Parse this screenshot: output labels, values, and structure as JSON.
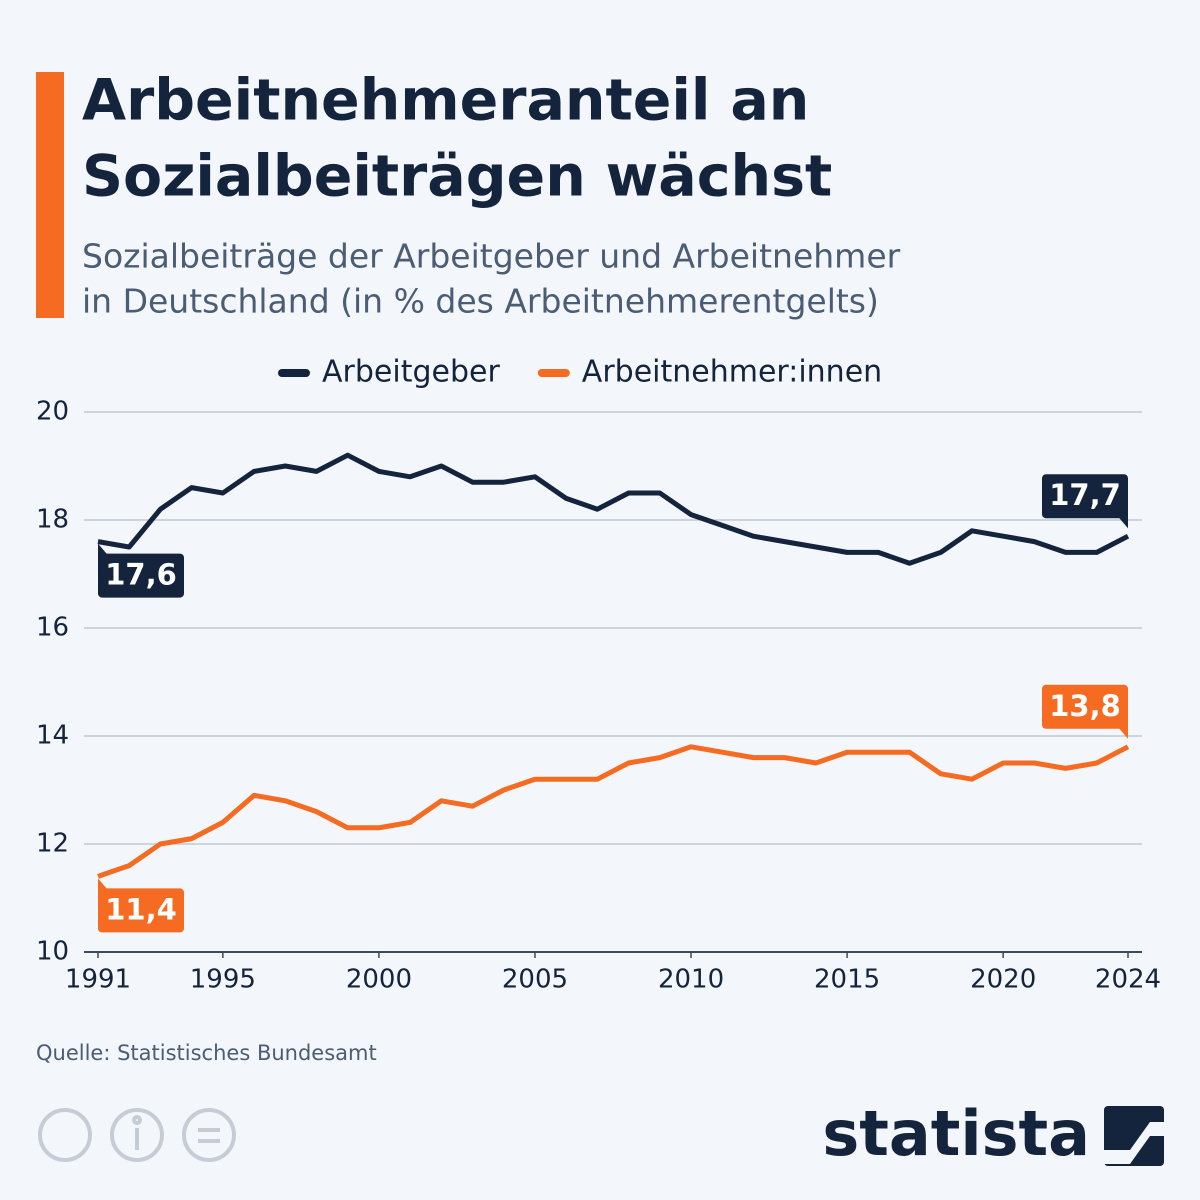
{
  "chart_data": {
    "type": "line",
    "title": [
      "Arbeitnehmeranteil an",
      "Sozialbeiträgen wächst"
    ],
    "subtitle": [
      "Sozialbeiträge der Arbeitgeber und Arbeitnehmer",
      "in Deutschland (in % des Arbeitnehmerentgelts)"
    ],
    "x": [
      1991,
      1992,
      1993,
      1994,
      1995,
      1996,
      1997,
      1998,
      1999,
      2000,
      2001,
      2002,
      2003,
      2004,
      2005,
      2006,
      2007,
      2008,
      2009,
      2010,
      2011,
      2012,
      2013,
      2014,
      2015,
      2016,
      2017,
      2018,
      2019,
      2020,
      2021,
      2022,
      2023,
      2024
    ],
    "series": [
      {
        "name": "Arbeitgeber",
        "color": "#14243d",
        "values": [
          17.6,
          17.5,
          18.2,
          18.6,
          18.5,
          18.9,
          19.0,
          18.9,
          19.2,
          18.9,
          18.8,
          19.0,
          18.7,
          18.7,
          18.8,
          18.4,
          18.2,
          18.5,
          18.5,
          18.1,
          17.9,
          17.7,
          17.6,
          17.5,
          17.4,
          17.4,
          17.2,
          17.4,
          17.8,
          17.7,
          17.6,
          17.4,
          17.4,
          17.7
        ],
        "value_labels": [
          "17,6",
          null,
          null,
          null,
          null,
          null,
          null,
          null,
          null,
          null,
          null,
          null,
          null,
          null,
          null,
          null,
          null,
          null,
          null,
          null,
          null,
          null,
          null,
          null,
          null,
          null,
          null,
          null,
          null,
          null,
          null,
          null,
          null,
          "17,7"
        ]
      },
      {
        "name": "Arbeitnehmer:innen",
        "color": "#f46b21",
        "values": [
          11.4,
          11.6,
          12.0,
          12.1,
          12.4,
          12.9,
          12.8,
          12.6,
          12.3,
          12.3,
          12.4,
          12.8,
          12.7,
          13.0,
          13.2,
          13.2,
          13.2,
          13.5,
          13.6,
          13.8,
          13.7,
          13.6,
          13.6,
          13.5,
          13.7,
          13.7,
          13.7,
          13.3,
          13.2,
          13.5,
          13.5,
          13.4,
          13.5,
          13.8
        ],
        "value_labels": [
          "11,4",
          null,
          null,
          null,
          null,
          null,
          null,
          null,
          null,
          null,
          null,
          null,
          null,
          null,
          null,
          null,
          null,
          null,
          null,
          null,
          null,
          null,
          null,
          null,
          null,
          null,
          null,
          null,
          null,
          null,
          null,
          null,
          null,
          "13,8"
        ]
      }
    ],
    "xlim": [
      1991,
      2024
    ],
    "xticks": [
      1991,
      1995,
      2000,
      2005,
      2010,
      2015,
      2020,
      2024
    ],
    "ylim": [
      10,
      20
    ],
    "yticks": [
      10,
      12,
      14,
      16,
      18,
      20
    ],
    "grid": true,
    "legend": "top",
    "source": "Quelle: Statistisches Bundesamt"
  },
  "logo": "statista"
}
